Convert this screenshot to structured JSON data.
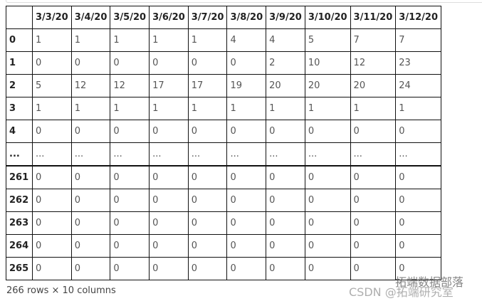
{
  "table": {
    "columns": [
      "3/3/20",
      "3/4/20",
      "3/5/20",
      "3/6/20",
      "3/7/20",
      "3/8/20",
      "3/9/20",
      "3/10/20",
      "3/11/20",
      "3/12/20"
    ],
    "rows": [
      {
        "index": "0",
        "values": [
          "1",
          "1",
          "1",
          "1",
          "1",
          "4",
          "4",
          "5",
          "7",
          "7"
        ]
      },
      {
        "index": "1",
        "values": [
          "0",
          "0",
          "0",
          "0",
          "0",
          "0",
          "2",
          "10",
          "12",
          "23"
        ]
      },
      {
        "index": "2",
        "values": [
          "5",
          "12",
          "12",
          "17",
          "17",
          "19",
          "20",
          "20",
          "20",
          "24"
        ]
      },
      {
        "index": "3",
        "values": [
          "1",
          "1",
          "1",
          "1",
          "1",
          "1",
          "1",
          "1",
          "1",
          "1"
        ]
      },
      {
        "index": "4",
        "values": [
          "0",
          "0",
          "0",
          "0",
          "0",
          "0",
          "0",
          "0",
          "0",
          "0"
        ]
      },
      {
        "index": "...",
        "values": [
          "...",
          "...",
          "...",
          "...",
          "...",
          "...",
          "...",
          "...",
          "...",
          "..."
        ]
      },
      {
        "index": "261",
        "values": [
          "0",
          "0",
          "0",
          "0",
          "0",
          "0",
          "0",
          "0",
          "0",
          "0"
        ]
      },
      {
        "index": "262",
        "values": [
          "0",
          "0",
          "0",
          "0",
          "0",
          "0",
          "0",
          "0",
          "0",
          "0"
        ]
      },
      {
        "index": "263",
        "values": [
          "0",
          "0",
          "0",
          "0",
          "0",
          "0",
          "0",
          "0",
          "0",
          "0"
        ]
      },
      {
        "index": "264",
        "values": [
          "0",
          "0",
          "0",
          "0",
          "0",
          "0",
          "0",
          "0",
          "0",
          "0"
        ]
      },
      {
        "index": "265",
        "values": [
          "0",
          "0",
          "0",
          "0",
          "0",
          "0",
          "0",
          "0",
          "0",
          "0"
        ]
      }
    ]
  },
  "caption": "266 rows × 10 columns",
  "watermarks": [
    "拓端数据部落",
    "CSDN @拓端研究室"
  ]
}
